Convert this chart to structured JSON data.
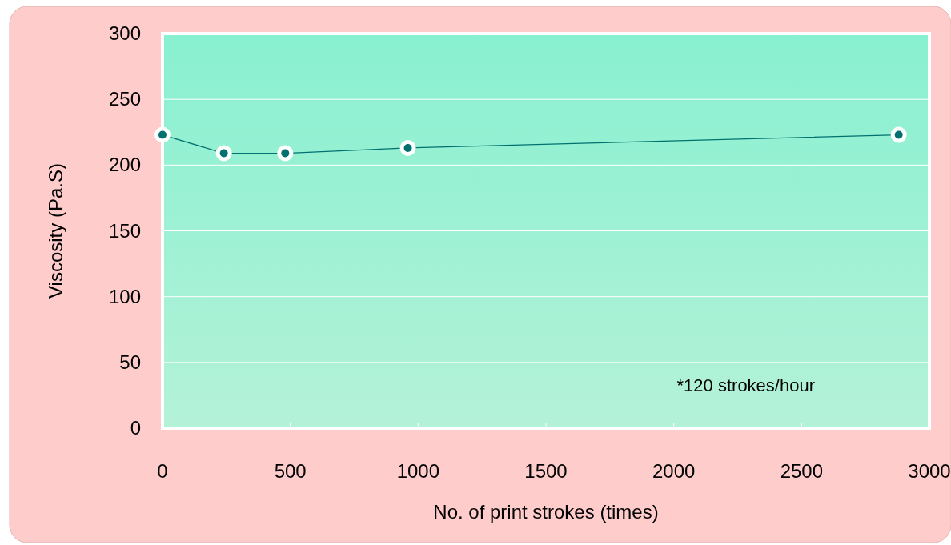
{
  "chart_data": {
    "type": "line",
    "xlabel": "No. of print strokes (times)",
    "ylabel": "Viscosity (Pa.S)",
    "x": [
      0,
      240,
      480,
      960,
      2880
    ],
    "series": [
      {
        "color": "#007070",
        "values": [
          223,
          209,
          209,
          213,
          223
        ]
      }
    ],
    "xlim": [
      0,
      3000
    ],
    "xticks": [
      0,
      500,
      1000,
      1500,
      2000,
      2500,
      3000
    ],
    "ylim": [
      0,
      300
    ],
    "yticks": [
      0,
      50,
      100,
      150,
      200,
      250,
      300
    ],
    "grid": "y",
    "marker": "circle",
    "line_style": "solid",
    "annotations": [
      "*120 strokes/hour"
    ]
  }
}
